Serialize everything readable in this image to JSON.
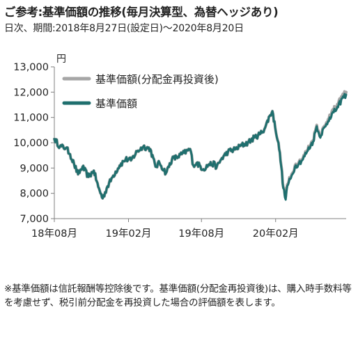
{
  "header": {
    "title": "ご参考:基準価額の推移(毎月決算型、為替ヘッジあり)",
    "subtitle": "日次、期間:2018年8月27日(設定日)〜2020年8月20日"
  },
  "note": "※基準価額は信託報酬等控除後です。基準価額(分配金再投資後)は、購入時手数料等を考慮せず、税引前分配金を再投資した場合の評価額を表します。",
  "colors": {
    "reinvested": "#a6a6a6",
    "nav": "#1f6f6e",
    "axis": "#7f7f7f"
  },
  "chart_data": {
    "type": "line",
    "ylabel": "円",
    "ylim": [
      7000,
      13000
    ],
    "yticks": [
      7000,
      8000,
      9000,
      10000,
      11000,
      12000,
      13000
    ],
    "ytick_labels": [
      "7,000",
      "8,000",
      "9,000",
      "10,000",
      "11,000",
      "12,000",
      "13,000"
    ],
    "xlim": [
      "2018-08-27",
      "2020-08-20"
    ],
    "xticks": [
      "2018-08-27",
      "2019-02-27",
      "2019-08-27",
      "2020-02-27"
    ],
    "xtick_labels": [
      "18年08月",
      "19年02月",
      "19年08月",
      "20年02月"
    ],
    "grid": false,
    "legend_position": "top-left",
    "series": [
      {
        "name": "基準価額(分配金再投資後)",
        "color": "#a6a6a6",
        "x": [
          "2018-08-27",
          "2018-09-10",
          "2018-09-25",
          "2018-10-05",
          "2018-10-15",
          "2018-10-25",
          "2018-11-05",
          "2018-11-20",
          "2018-12-03",
          "2018-12-14",
          "2018-12-25",
          "2019-01-04",
          "2019-01-20",
          "2019-02-05",
          "2019-02-20",
          "2019-03-05",
          "2019-03-20",
          "2019-04-05",
          "2019-04-22",
          "2019-05-05",
          "2019-05-15",
          "2019-05-31",
          "2019-06-15",
          "2019-06-30",
          "2019-07-15",
          "2019-07-30",
          "2019-08-07",
          "2019-08-15",
          "2019-09-01",
          "2019-09-15",
          "2019-09-30",
          "2019-10-03",
          "2019-10-15",
          "2019-11-01",
          "2019-11-20",
          "2019-12-05",
          "2019-12-20",
          "2020-01-05",
          "2020-01-20",
          "2020-02-01",
          "2020-02-12",
          "2020-02-19",
          "2020-02-26",
          "2020-03-05",
          "2020-03-12",
          "2020-03-17",
          "2020-03-23",
          "2020-03-27",
          "2020-04-05",
          "2020-04-15",
          "2020-04-25",
          "2020-05-05",
          "2020-05-15",
          "2020-05-30",
          "2020-06-08",
          "2020-06-15",
          "2020-06-30",
          "2020-07-10",
          "2020-07-20",
          "2020-07-31",
          "2020-08-10",
          "2020-08-20"
        ],
        "values": [
          10150,
          9850,
          9800,
          9550,
          9150,
          8750,
          9050,
          8650,
          8900,
          8250,
          7800,
          8200,
          8700,
          9100,
          9350,
          9300,
          9650,
          9850,
          9750,
          9050,
          9200,
          8800,
          9350,
          9450,
          9600,
          9750,
          9100,
          9200,
          8950,
          9150,
          9150,
          9000,
          9350,
          9650,
          9750,
          9900,
          10000,
          10200,
          10350,
          10600,
          11050,
          11250,
          10600,
          10000,
          9100,
          8250,
          7850,
          8350,
          8650,
          9100,
          9250,
          9400,
          9700,
          10100,
          10700,
          10300,
          10700,
          11100,
          11300,
          11500,
          11850,
          12000
        ]
      },
      {
        "name": "基準価額",
        "color": "#1f6f6e",
        "x": [
          "2018-08-27",
          "2018-09-10",
          "2018-09-25",
          "2018-10-05",
          "2018-10-15",
          "2018-10-25",
          "2018-11-05",
          "2018-11-20",
          "2018-12-03",
          "2018-12-14",
          "2018-12-25",
          "2019-01-04",
          "2019-01-20",
          "2019-02-05",
          "2019-02-20",
          "2019-03-05",
          "2019-03-20",
          "2019-04-05",
          "2019-04-22",
          "2019-05-05",
          "2019-05-15",
          "2019-05-31",
          "2019-06-15",
          "2019-06-30",
          "2019-07-15",
          "2019-07-30",
          "2019-08-07",
          "2019-08-15",
          "2019-09-01",
          "2019-09-15",
          "2019-09-30",
          "2019-10-03",
          "2019-10-15",
          "2019-11-01",
          "2019-11-20",
          "2019-12-05",
          "2019-12-20",
          "2020-01-05",
          "2020-01-20",
          "2020-02-01",
          "2020-02-12",
          "2020-02-19",
          "2020-02-26",
          "2020-03-05",
          "2020-03-12",
          "2020-03-17",
          "2020-03-23",
          "2020-03-27",
          "2020-04-05",
          "2020-04-15",
          "2020-04-25",
          "2020-05-05",
          "2020-05-15",
          "2020-05-30",
          "2020-06-08",
          "2020-06-15",
          "2020-06-30",
          "2020-07-10",
          "2020-07-20",
          "2020-07-31",
          "2020-08-10",
          "2020-08-20"
        ],
        "values": [
          10150,
          9850,
          9800,
          9550,
          9150,
          8750,
          9050,
          8650,
          8900,
          8250,
          7800,
          8200,
          8700,
          9100,
          9350,
          9300,
          9650,
          9850,
          9750,
          9050,
          9200,
          8800,
          9350,
          9450,
          9600,
          9750,
          9100,
          9200,
          8950,
          9150,
          9150,
          9000,
          9350,
          9650,
          9750,
          9900,
          10000,
          10200,
          10350,
          10600,
          11050,
          11250,
          10600,
          10000,
          9050,
          8200,
          7750,
          8300,
          8600,
          9050,
          9200,
          9350,
          9650,
          10050,
          10650,
          10250,
          10650,
          11000,
          11200,
          11400,
          11750,
          11900
        ]
      }
    ]
  }
}
